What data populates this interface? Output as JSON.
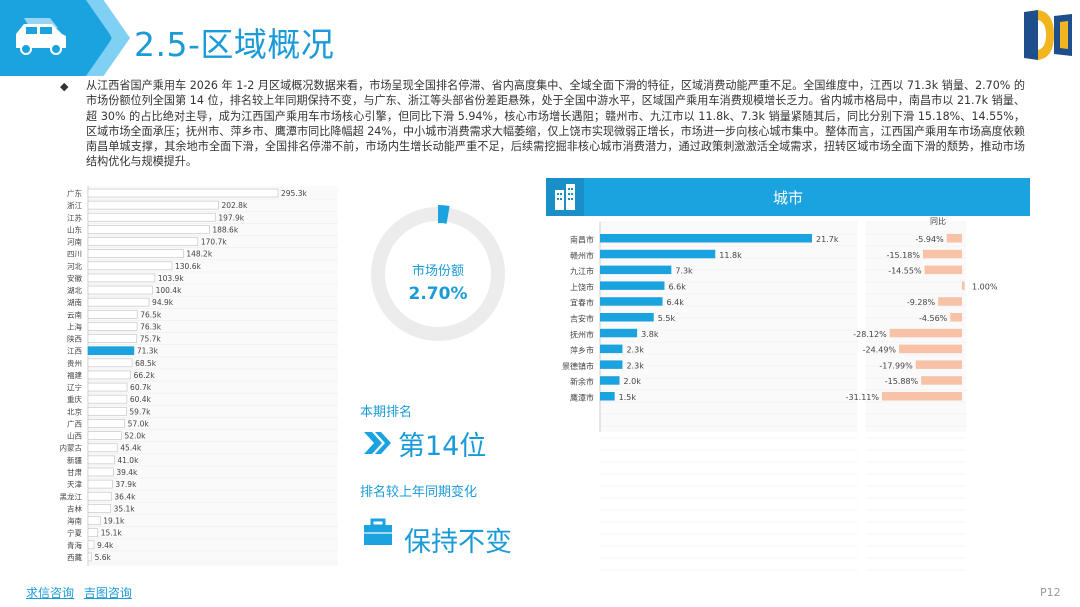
{
  "header": {
    "title": "2.5-区域概况"
  },
  "intro": {
    "text": "从江西省国产乘用车 2026 年 1-2 月区域概况数据来看，市场呈现全国排名停滞、省内高度集中、全域全面下滑的特征，区域消费动能严重不足。全国维度中，江西以 71.3k 销量、2.70% 的市场份额位列全国第 14 位，排名较上年同期保持不变，与广东、浙江等头部省份差距悬殊，处于全国中游水平，区域国产乘用车消费规模增长乏力。省内城市格局中，南昌市以 21.7k 销量、超 30% 的占比绝对主导，成为江西国产乘用车市场核心引擎，但同比下滑 5.94%，核心市场增长遇阻；赣州市、九江市以 11.8k、7.3k 销量紧随其后，同比分别下滑 15.18%、14.55%，区域市场全面承压；抚州市、萍乡市、鹰潭市同比降幅超 24%，中小城市消费需求大幅萎缩，仅上饶市实现微弱正增长，市场进一步向核心城市集中。整体而言，江西国产乘用车市场高度依赖南昌单城支撑，其余地市全面下滑，全国排名停滞不前，市场内生增长动能严重不足，后续需挖掘非核心城市消费潜力，通过政策刺激激活全域需求，扭转区域市场全面下滑的颓势，推动市场结构优化与规模提升。"
  },
  "stats": {
    "share_label": "市场份额",
    "share_value": "2.70%",
    "share_fraction": 0.027,
    "rank_label": "本期排名",
    "rank_value": "第14位",
    "change_label": "排名较上年同期变化",
    "change_value": "保持不变"
  },
  "city_section": {
    "title": "城市",
    "yoy_header": "同比"
  },
  "footer": {
    "link1": "求信咨询",
    "link2": "吉图咨询",
    "page": "P12"
  },
  "colors": {
    "accent": "#1aa3df",
    "highlight": "#1aa3df",
    "bar": "#ffffff",
    "bar_border": "#c8c8c8",
    "yoy_bar": "#f8c2a6"
  },
  "chart_data": [
    {
      "type": "bar",
      "orientation": "horizontal",
      "categories": [
        "广东",
        "浙江",
        "江苏",
        "山东",
        "河南",
        "四川",
        "河北",
        "安徽",
        "湖北",
        "湖南",
        "云南",
        "上海",
        "陕西",
        "江西",
        "贵州",
        "福建",
        "辽宁",
        "重庆",
        "北京",
        "广西",
        "山西",
        "内蒙古",
        "新疆",
        "甘肃",
        "天津",
        "黑龙江",
        "吉林",
        "海南",
        "宁夏",
        "青海",
        "西藏"
      ],
      "values": [
        295.3,
        202.8,
        197.9,
        188.6,
        170.7,
        148.2,
        130.6,
        103.9,
        100.4,
        94.9,
        76.5,
        76.3,
        75.7,
        71.3,
        68.5,
        66.2,
        60.7,
        60.4,
        59.7,
        57.0,
        52.0,
        45.4,
        41.0,
        39.4,
        37.9,
        36.4,
        35.1,
        19.1,
        15.1,
        9.4,
        5.6
      ],
      "labels": [
        "295.3k",
        "202.8k",
        "197.9k",
        "188.6k",
        "170.7k",
        "148.2k",
        "130.6k",
        "103.9k",
        "100.4k",
        "94.9k",
        "76.5k",
        "76.3k",
        "75.7k",
        "71.3k",
        "68.5k",
        "66.2k",
        "60.7k",
        "60.4k",
        "59.7k",
        "57.0k",
        "52.0k",
        "45.4k",
        "41.0k",
        "39.4k",
        "37.9k",
        "36.4k",
        "35.1k",
        "19.1k",
        "15.1k",
        "9.4k",
        "5.6k"
      ],
      "highlight": "江西"
    },
    {
      "type": "bar",
      "orientation": "horizontal",
      "categories": [
        "南昌市",
        "赣州市",
        "九江市",
        "上饶市",
        "宜春市",
        "吉安市",
        "抚州市",
        "萍乡市",
        "景德镇市",
        "新余市",
        "鹰潭市"
      ],
      "values": [
        21.7,
        11.8,
        7.3,
        6.6,
        6.4,
        5.5,
        3.8,
        2.3,
        2.3,
        2.0,
        1.5
      ],
      "labels": [
        "21.7k",
        "11.8k",
        "7.3k",
        "6.6k",
        "6.4k",
        "5.5k",
        "3.8k",
        "2.3k",
        "2.3k",
        "2.0k",
        "1.5k"
      ],
      "yoy": [
        -5.94,
        -15.18,
        -14.55,
        1.0,
        -9.28,
        -4.56,
        -28.12,
        -24.49,
        -17.99,
        -15.88,
        -31.11
      ],
      "yoy_labels": [
        "-5.94%",
        "-15.18%",
        "-14.55%",
        "1.00%",
        "-9.28%",
        "-4.56%",
        "-28.12%",
        "-24.49%",
        "-17.99%",
        "-15.88%",
        "-31.11%"
      ]
    }
  ]
}
